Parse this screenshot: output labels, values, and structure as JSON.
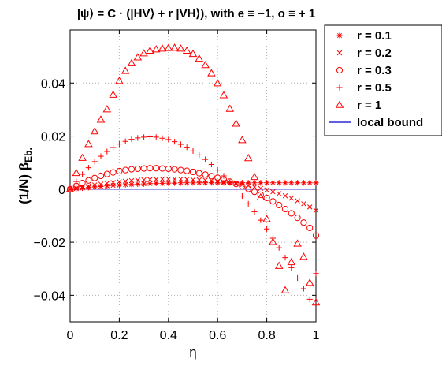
{
  "chart_data": {
    "type": "scatter",
    "title": "|ψ⟩ = C · (|HV⟩ + r |VH⟩), with e ≡ −1, o ≡ + 1",
    "xlabel": "η",
    "ylabel_main": "(1/N) β",
    "ylabel_sub": "Eb.",
    "xlim": [
      0,
      1
    ],
    "ylim": [
      -0.05,
      0.06
    ],
    "xticks": [
      0,
      0.2,
      0.4,
      0.6,
      0.8,
      1
    ],
    "xtick_labels": [
      "0",
      "0.2",
      "0.4",
      "0.6",
      "0.8",
      "1"
    ],
    "yticks": [
      -0.04,
      -0.02,
      0,
      0.02,
      0.04
    ],
    "ytick_labels": [
      "−0.04",
      "−0.02",
      "0",
      "0.02",
      "0.04"
    ],
    "grid": true,
    "legend_position": "outside-top-right",
    "marker_color": "#ff0000",
    "bound_color": "#0000cc",
    "series": [
      {
        "name": "r = 0.1",
        "marker": "star",
        "x": [
          0,
          0.025,
          0.05,
          0.075,
          0.1,
          0.125,
          0.15,
          0.175,
          0.2,
          0.225,
          0.25,
          0.275,
          0.3,
          0.325,
          0.35,
          0.375,
          0.4,
          0.425,
          0.45,
          0.475,
          0.5,
          0.525,
          0.55,
          0.575,
          0.6,
          0.625,
          0.65,
          0.675,
          0.7,
          0.725,
          0.75,
          0.775,
          0.8,
          0.825,
          0.85,
          0.875,
          0.9,
          0.925,
          0.95,
          0.975,
          1
        ],
        "y": [
          0,
          0.0002,
          0.0004,
          0.0006,
          0.0008,
          0.001,
          0.0012,
          0.0014,
          0.0015,
          0.0017,
          0.0018,
          0.0019,
          0.002,
          0.0021,
          0.0022,
          0.0022,
          0.0023,
          0.0023,
          0.0024,
          0.0024,
          0.0024,
          0.0024,
          0.0024,
          0.0024,
          0.0024,
          0.0024,
          0.0024,
          0.0024,
          0.0024,
          0.0024,
          0.0024,
          0.0024,
          0.0024,
          0.0024,
          0.0024,
          0.0024,
          0.0024,
          0.0024,
          0.0024,
          0.0024,
          0.0024
        ]
      },
      {
        "name": "r = 0.2",
        "marker": "x",
        "x": [
          0,
          0.025,
          0.05,
          0.075,
          0.1,
          0.125,
          0.15,
          0.175,
          0.2,
          0.225,
          0.25,
          0.275,
          0.3,
          0.325,
          0.35,
          0.375,
          0.4,
          0.425,
          0.45,
          0.475,
          0.5,
          0.525,
          0.55,
          0.575,
          0.6,
          0.625,
          0.65,
          0.675,
          0.7,
          0.725,
          0.75,
          0.775,
          0.8,
          0.825,
          0.85,
          0.875,
          0.9,
          0.925,
          0.95,
          0.975,
          1
        ],
        "y": [
          0,
          0.0004,
          0.0008,
          0.0012,
          0.0016,
          0.0019,
          0.0022,
          0.0025,
          0.0028,
          0.003,
          0.0032,
          0.0034,
          0.0035,
          0.0036,
          0.0037,
          0.0038,
          0.0038,
          0.0038,
          0.0038,
          0.0037,
          0.0036,
          0.0035,
          0.0034,
          0.0032,
          0.003,
          0.0027,
          0.0024,
          0.0021,
          0.0017,
          0.0013,
          0.0008,
          0.0003,
          -0.0003,
          -0.001,
          -0.0017,
          -0.0025,
          -0.0034,
          -0.0044,
          -0.0055,
          -0.0067,
          -0.008
        ]
      },
      {
        "name": "r = 0.3",
        "marker": "circle",
        "x": [
          0,
          0.025,
          0.05,
          0.075,
          0.1,
          0.125,
          0.15,
          0.175,
          0.2,
          0.225,
          0.25,
          0.275,
          0.3,
          0.325,
          0.35,
          0.375,
          0.4,
          0.425,
          0.45,
          0.475,
          0.5,
          0.525,
          0.55,
          0.575,
          0.6,
          0.625,
          0.65,
          0.675,
          0.7,
          0.725,
          0.75,
          0.775,
          0.8,
          0.825,
          0.85,
          0.875,
          0.9,
          0.925,
          0.95,
          0.975,
          1
        ],
        "y": [
          0,
          0.0012,
          0.0023,
          0.0033,
          0.0042,
          0.005,
          0.0057,
          0.0063,
          0.0068,
          0.0072,
          0.0075,
          0.0077,
          0.0078,
          0.0079,
          0.0079,
          0.0078,
          0.0077,
          0.0075,
          0.0072,
          0.0069,
          0.0065,
          0.006,
          0.0055,
          0.0049,
          0.0043,
          0.0036,
          0.0028,
          0.002,
          0.0011,
          0.0001,
          -0.001,
          -0.0021,
          -0.0033,
          -0.0046,
          -0.006,
          -0.0075,
          -0.0091,
          -0.0108,
          -0.0126,
          -0.0146,
          -0.0175
        ]
      },
      {
        "name": "r = 0.5",
        "marker": "plus",
        "x": [
          0,
          0.025,
          0.05,
          0.075,
          0.1,
          0.125,
          0.15,
          0.175,
          0.2,
          0.225,
          0.25,
          0.275,
          0.3,
          0.325,
          0.35,
          0.375,
          0.4,
          0.425,
          0.45,
          0.475,
          0.5,
          0.525,
          0.55,
          0.575,
          0.6,
          0.625,
          0.65,
          0.675,
          0.7,
          0.725,
          0.75,
          0.775,
          0.8,
          0.825,
          0.85,
          0.875,
          0.9,
          0.925,
          0.95,
          0.975,
          1
        ],
        "y": [
          0,
          0.0029,
          0.0056,
          0.0081,
          0.0104,
          0.0124,
          0.0142,
          0.0157,
          0.017,
          0.018,
          0.0188,
          0.0193,
          0.0196,
          0.0197,
          0.0196,
          0.0192,
          0.0187,
          0.0179,
          0.0169,
          0.0158,
          0.0144,
          0.0129,
          0.0112,
          0.0093,
          0.0072,
          0.005,
          0.0026,
          0.0001,
          -0.0026,
          -0.0055,
          -0.0085,
          -0.0117,
          -0.015,
          -0.0185,
          -0.0221,
          -0.0258,
          -0.0296,
          -0.0335,
          -0.0375,
          -0.0415,
          -0.0318
        ]
      },
      {
        "name": "r = 1",
        "marker": "triangle",
        "x": [
          0,
          0.025,
          0.05,
          0.075,
          0.1,
          0.125,
          0.15,
          0.175,
          0.2,
          0.225,
          0.25,
          0.275,
          0.3,
          0.325,
          0.35,
          0.375,
          0.4,
          0.425,
          0.45,
          0.475,
          0.5,
          0.525,
          0.55,
          0.575,
          0.6,
          0.625,
          0.65,
          0.675,
          0.7,
          0.725,
          0.75,
          0.775,
          0.8,
          0.825,
          0.85,
          0.875,
          0.9,
          0.925,
          0.95,
          0.975,
          1
        ],
        "y": [
          0,
          0.0061,
          0.0118,
          0.017,
          0.0218,
          0.0262,
          0.0301,
          0.0356,
          0.0408,
          0.0446,
          0.0475,
          0.0497,
          0.0512,
          0.0522,
          0.0527,
          0.053,
          0.0532,
          0.0533,
          0.053,
          0.0522,
          0.051,
          0.0492,
          0.0468,
          0.0437,
          0.0399,
          0.0354,
          0.0303,
          0.0247,
          0.0185,
          0.0117,
          0.0046,
          -0.0031,
          -0.0113,
          -0.0199,
          -0.0289,
          -0.0381,
          -0.0275,
          -0.0205,
          -0.0255,
          -0.0353,
          -0.0427
        ]
      }
    ],
    "bound": {
      "name": "local bound",
      "x": [
        0,
        1
      ],
      "y": [
        0,
        0
      ]
    }
  }
}
